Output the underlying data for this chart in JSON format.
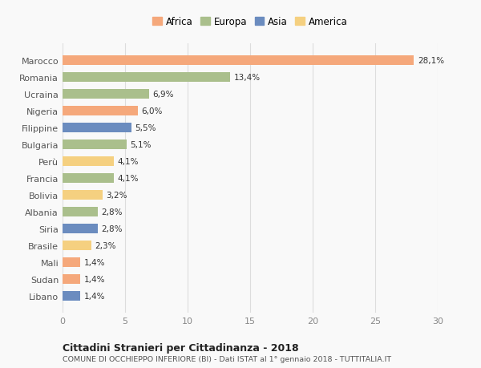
{
  "countries": [
    "Marocco",
    "Romania",
    "Ucraina",
    "Nigeria",
    "Filippine",
    "Bulgaria",
    "Perù",
    "Francia",
    "Bolivia",
    "Albania",
    "Siria",
    "Brasile",
    "Mali",
    "Sudan",
    "Libano"
  ],
  "values": [
    28.1,
    13.4,
    6.9,
    6.0,
    5.5,
    5.1,
    4.1,
    4.1,
    3.2,
    2.8,
    2.8,
    2.3,
    1.4,
    1.4,
    1.4
  ],
  "labels": [
    "28,1%",
    "13,4%",
    "6,9%",
    "6,0%",
    "5,5%",
    "5,1%",
    "4,1%",
    "4,1%",
    "3,2%",
    "2,8%",
    "2,8%",
    "2,3%",
    "1,4%",
    "1,4%",
    "1,4%"
  ],
  "continents": [
    "Africa",
    "Europa",
    "Europa",
    "Africa",
    "Asia",
    "Europa",
    "America",
    "Europa",
    "America",
    "Europa",
    "Asia",
    "America",
    "Africa",
    "Africa",
    "Asia"
  ],
  "colors": {
    "Africa": "#F5A87B",
    "Europa": "#AABF8C",
    "Asia": "#6B8CBF",
    "America": "#F5D080"
  },
  "legend_order": [
    "Africa",
    "Europa",
    "Asia",
    "America"
  ],
  "xlim": [
    0,
    30
  ],
  "xticks": [
    0,
    5,
    10,
    15,
    20,
    25,
    30
  ],
  "title": "Cittadini Stranieri per Cittadinanza - 2018",
  "subtitle": "COMUNE DI OCCHIEPPO INFERIORE (BI) - Dati ISTAT al 1° gennaio 2018 - TUTTITALIA.IT",
  "background_color": "#f9f9f9",
  "bar_height": 0.55,
  "grid_color": "#dddddd"
}
